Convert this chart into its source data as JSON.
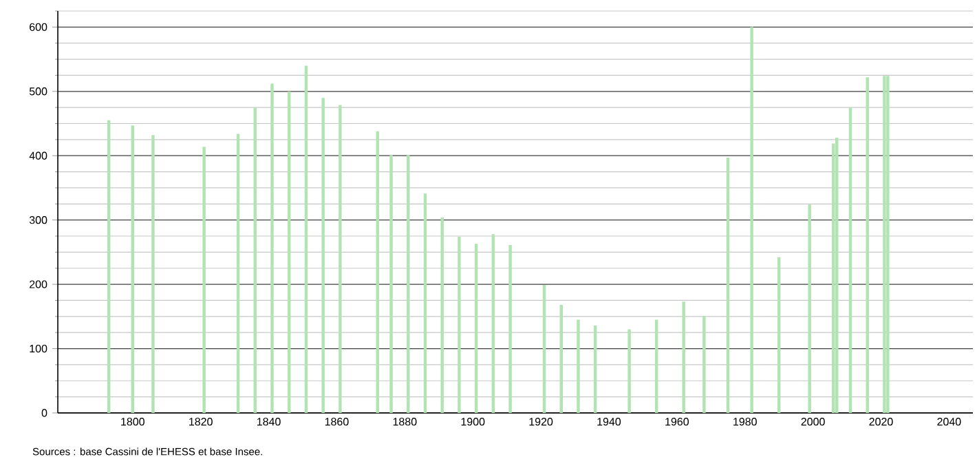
{
  "chart_data": {
    "type": "bar",
    "x": [
      1793,
      1800,
      1806,
      1821,
      1831,
      1836,
      1841,
      1846,
      1851,
      1856,
      1861,
      1872,
      1876,
      1881,
      1886,
      1891,
      1896,
      1901,
      1906,
      1911,
      1921,
      1926,
      1931,
      1936,
      1946,
      1954,
      1962,
      1968,
      1975,
      1982,
      1990,
      1999,
      2006,
      2007,
      2011,
      2016,
      2021,
      2022
    ],
    "values": [
      455,
      447,
      432,
      414,
      434,
      475,
      512,
      500,
      540,
      490,
      479,
      438,
      401,
      401,
      341,
      304,
      274,
      263,
      278,
      261,
      199,
      168,
      145,
      136,
      130,
      145,
      173,
      151,
      397,
      600,
      242,
      324,
      419,
      428,
      475,
      522,
      524,
      524
    ],
    "color": "#b2e3b2",
    "xlim": [
      1778,
      2047
    ],
    "xticks": [
      1800,
      1820,
      1840,
      1860,
      1880,
      1900,
      1920,
      1940,
      1960,
      1980,
      2000,
      2020,
      2040
    ],
    "ylim": [
      0,
      625
    ],
    "yticks": [
      0,
      {
        "value": 25,
        "label": null
      },
      {
        "value": 50,
        "label": null
      },
      {
        "value": 75,
        "label": null
      },
      100,
      {
        "value": 125,
        "label": null
      },
      {
        "value": 150,
        "label": null
      },
      {
        "value": 175,
        "label": null
      },
      200,
      {
        "value": 225,
        "label": null
      },
      {
        "value": 250,
        "label": null
      },
      {
        "value": 275,
        "label": null
      },
      300,
      {
        "value": 325,
        "label": null
      },
      {
        "value": 350,
        "label": null
      },
      {
        "value": 375,
        "label": null
      },
      400,
      {
        "value": 425,
        "label": null
      },
      {
        "value": 450,
        "label": null
      },
      {
        "value": 475,
        "label": null
      },
      500,
      {
        "value": 525,
        "label": null
      },
      {
        "value": 550,
        "label": null
      },
      {
        "value": 575,
        "label": null
      },
      600,
      {
        "value": 625,
        "label": null
      }
    ],
    "grid": "y",
    "annotations": [
      "Sources : base Cassini de l'EHESS et base Insee."
    ]
  }
}
